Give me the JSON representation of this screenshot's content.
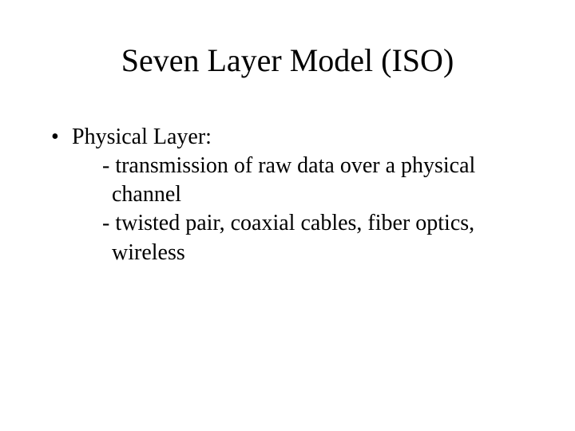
{
  "title": "Seven Layer Model (ISO)",
  "bullet": {
    "label": "Physical Layer:",
    "sub1_line1": "- transmission of raw data over a physical",
    "sub1_line2": "channel",
    "sub2_line1": "- twisted pair, coaxial cables, fiber optics,",
    "sub2_line2": "wireless"
  },
  "colors": {
    "background": "#ffffff",
    "text": "#000000"
  },
  "typography": {
    "family": "Times New Roman",
    "title_fontsize": 40,
    "body_fontsize": 28
  }
}
